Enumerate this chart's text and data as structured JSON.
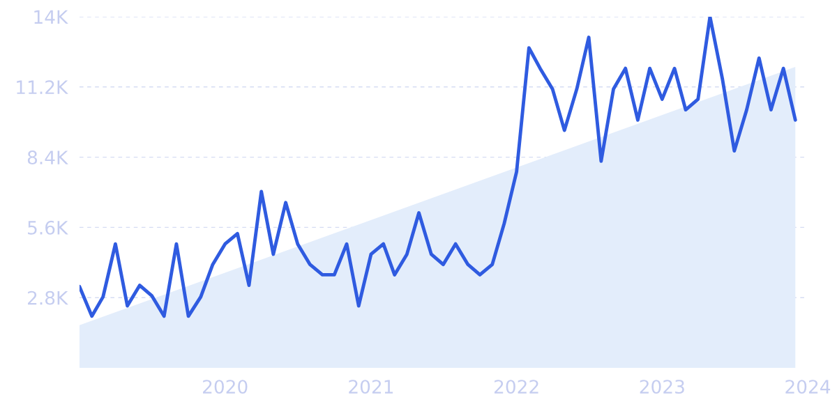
{
  "chart_data": {
    "type": "line",
    "x": [
      "2019-01",
      "2019-02",
      "2019-03",
      "2019-04",
      "2019-05",
      "2019-06",
      "2019-07",
      "2019-08",
      "2019-09",
      "2019-10",
      "2019-11",
      "2019-12",
      "2020-01",
      "2020-02",
      "2020-03",
      "2020-04",
      "2020-05",
      "2020-06",
      "2020-07",
      "2020-08",
      "2020-09",
      "2020-10",
      "2020-11",
      "2020-12",
      "2021-01",
      "2021-02",
      "2021-03",
      "2021-04",
      "2021-05",
      "2021-06",
      "2021-07",
      "2021-08",
      "2021-09",
      "2021-10",
      "2021-11",
      "2021-12",
      "2022-01",
      "2022-02",
      "2022-03",
      "2022-04",
      "2022-05",
      "2022-06",
      "2022-07",
      "2022-08",
      "2022-09",
      "2022-10",
      "2022-11",
      "2022-12",
      "2023-01",
      "2023-02",
      "2023-03",
      "2023-04",
      "2023-05",
      "2023-06",
      "2023-07",
      "2023-08",
      "2023-09",
      "2023-10",
      "2023-11",
      "2023-12"
    ],
    "series": [
      {
        "type": "area",
        "color": "#e3edfb",
        "x": [
          "2019-01",
          "2023-12"
        ],
        "values": [
          1700,
          12000
        ]
      },
      {
        "color": "#2f5be0",
        "values": [
          3240,
          2060,
          2830,
          4940,
          2470,
          3290,
          2880,
          2060,
          4940,
          2060,
          2830,
          4120,
          4940,
          5350,
          3290,
          7030,
          4530,
          6590,
          4940,
          4120,
          3710,
          3710,
          4940,
          2470,
          4530,
          4940,
          3710,
          4530,
          6180,
          4530,
          4120,
          4940,
          4120,
          3710,
          4120,
          5760,
          7820,
          12760,
          11940,
          11120,
          9470,
          11120,
          13180,
          8240,
          11120,
          11940,
          9880,
          11940,
          10710,
          11940,
          10290,
          10710,
          14000,
          11530,
          8650,
          10290,
          12350,
          10290,
          11940,
          9880
        ]
      }
    ],
    "xlim": [
      "2019-01",
      "2024-01"
    ],
    "xticks": [
      "2020",
      "2021",
      "2022",
      "2023",
      "2024"
    ],
    "ylim": [
      0,
      14000
    ],
    "yticks": [
      {
        "value": 2800,
        "label": "2.8K"
      },
      {
        "value": 5600,
        "label": "5.6K"
      },
      {
        "value": 8400,
        "label": "8.4K"
      },
      {
        "value": 11200,
        "label": "11.2K"
      },
      {
        "value": 14000,
        "label": "14K"
      }
    ],
    "grid": "y",
    "marker": "none",
    "line_style": "solid",
    "legend": false
  }
}
